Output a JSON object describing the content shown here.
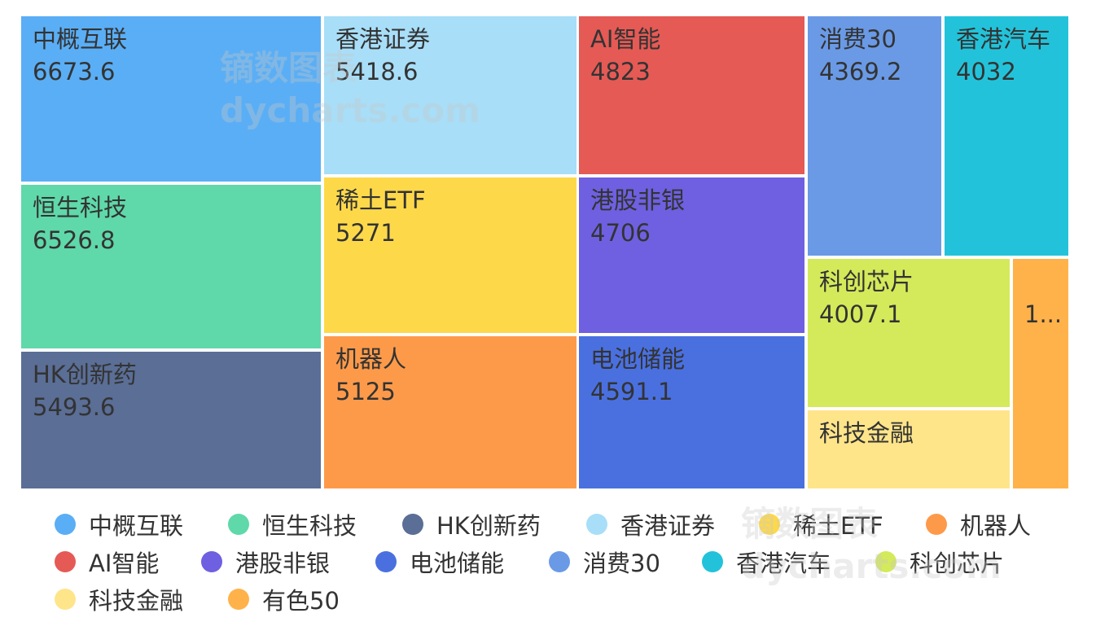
{
  "chart_data": {
    "type": "treemap",
    "series": [
      {
        "name": "中概互联",
        "value": 6673.6,
        "label": "中概互联\n6673.6",
        "color": "#5aaef5"
      },
      {
        "name": "恒生科技",
        "value": 6526.8,
        "label": "恒生科技\n6526.8",
        "color": "#5fd8aa"
      },
      {
        "name": "HK创新药",
        "value": 5493.6,
        "label": "HK创新药\n5493.6",
        "color": "#5a6e96"
      },
      {
        "name": "香港证券",
        "value": 5418.6,
        "label": "香港证券\n5418.6",
        "color": "#a8def8"
      },
      {
        "name": "稀土ETF",
        "value": 5271,
        "label": "稀土ETF\n5271",
        "color": "#fdd94a"
      },
      {
        "name": "机器人",
        "value": 5125,
        "label": "机器人\n5125",
        "color": "#fd9a4a"
      },
      {
        "name": "AI智能",
        "value": 4823,
        "label": "AI智能\n4823",
        "color": "#e55a55"
      },
      {
        "name": "港股非银",
        "value": 4706,
        "label": "港股非银\n4706",
        "color": "#6e60e0"
      },
      {
        "name": "电池储能",
        "value": 4591.1,
        "label": "电池储能\n4591.1",
        "color": "#4a70e0"
      },
      {
        "name": "消费30",
        "value": 4369.2,
        "label": "消费30\n4369.2",
        "color": "#6a9ae6"
      },
      {
        "name": "香港汽车",
        "value": 4032,
        "label": "香港汽车\n4032",
        "color": "#22c3da"
      },
      {
        "name": "科创芯片",
        "value": 4007.1,
        "label": "科创芯片\n4007.1",
        "color": "#d4ea5a"
      },
      {
        "name": "科技金融",
        "value": 2136,
        "label": "科技金融",
        "color": "#ffe58a"
      },
      {
        "name": "有色50",
        "value": 1689,
        "label": "1...",
        "color": "#ffb24a"
      }
    ],
    "legend_position": "bottom"
  },
  "watermark": "镝数图表 dycharts.com"
}
